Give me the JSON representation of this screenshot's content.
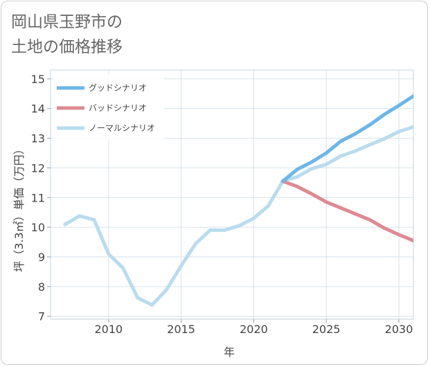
{
  "title_lines": [
    "岡山県玉野市の",
    "土地の価格推移"
  ],
  "chart_data": {
    "type": "line",
    "xlabel": "年",
    "ylabel": "坪（3.3㎡）単価（万円）",
    "xlim": [
      2006,
      2031
    ],
    "ylim": [
      6.9,
      15.3
    ],
    "x_ticks": [
      2010,
      2015,
      2020,
      2025,
      2030
    ],
    "y_ticks": [
      7,
      8,
      9,
      10,
      11,
      12,
      13,
      14,
      15
    ],
    "legend_position": "top-left",
    "grid": true,
    "series": [
      {
        "name": "グッドシナリオ",
        "color": "#6cb6e8",
        "x": [
          2022,
          2023,
          2024,
          2025,
          2026,
          2027,
          2028,
          2029,
          2030,
          2031
        ],
        "values": [
          11.55,
          11.95,
          12.2,
          12.5,
          12.9,
          13.15,
          13.45,
          13.8,
          14.1,
          14.42
        ]
      },
      {
        "name": "バッドシナリオ",
        "color": "#dd8a92",
        "x": [
          2022,
          2023,
          2024,
          2025,
          2026,
          2027,
          2028,
          2029,
          2030,
          2031
        ],
        "values": [
          11.55,
          11.37,
          11.12,
          10.85,
          10.65,
          10.45,
          10.25,
          9.97,
          9.75,
          9.55
        ]
      },
      {
        "name": "ノーマルシナリオ",
        "color": "#b9dcee",
        "x": [
          2007,
          2008,
          2009,
          2010,
          2011,
          2012,
          2013,
          2014,
          2015,
          2016,
          2017,
          2018,
          2019,
          2020,
          2021,
          2022,
          2023,
          2024,
          2025,
          2026,
          2027,
          2028,
          2029,
          2030,
          2031
        ],
        "values": [
          10.1,
          10.38,
          10.25,
          9.1,
          8.62,
          7.62,
          7.38,
          7.9,
          8.7,
          9.45,
          9.9,
          9.9,
          10.05,
          10.3,
          10.72,
          11.55,
          11.7,
          11.97,
          12.12,
          12.4,
          12.57,
          12.78,
          12.98,
          13.22,
          13.38
        ]
      }
    ]
  }
}
